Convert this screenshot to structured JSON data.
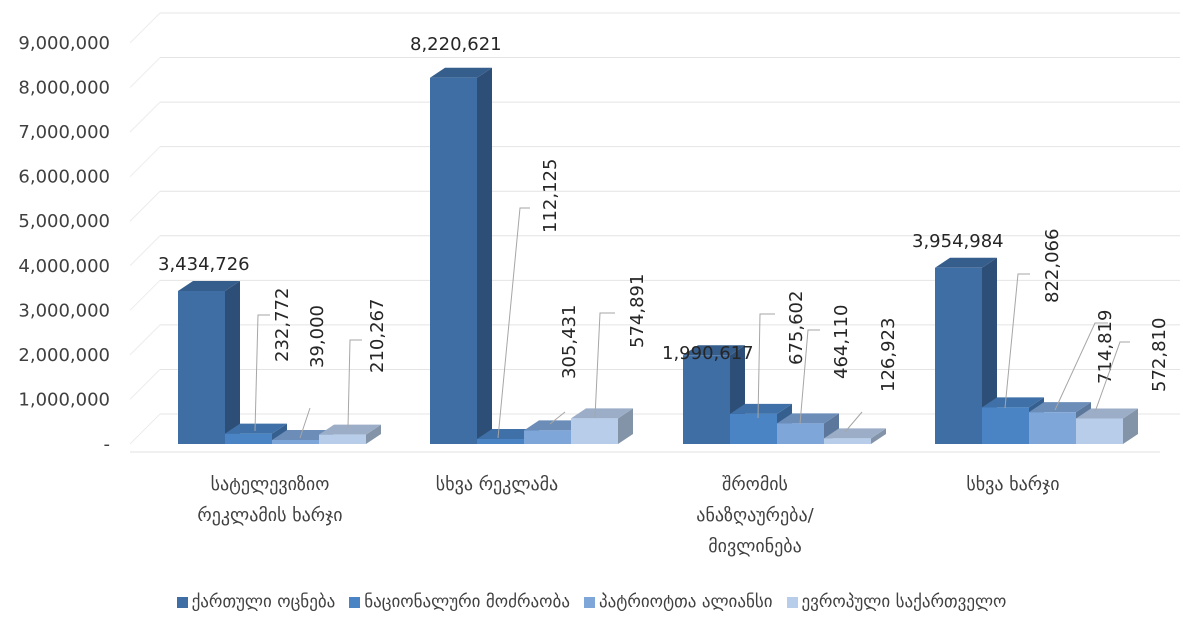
{
  "chart_data": {
    "type": "bar",
    "categories": [
      [
        "სატელევიზიო",
        "რეკლამის ხარჯი"
      ],
      [
        "სხვა რეკლამა"
      ],
      [
        "შრომის",
        "ანაზღაურება/",
        "მივლინება"
      ],
      [
        "სხვა ხარჯი"
      ]
    ],
    "series": [
      {
        "name": "ქართული ოცნება",
        "values": [
          3434726,
          8220621,
          1990617,
          3954984
        ],
        "labels": [
          "3,434,726",
          "8,220,621",
          "1,990,617",
          "3,954,984"
        ]
      },
      {
        "name": "ნაციონალური მოძრაობა",
        "values": [
          232772,
          112125,
          675602,
          822066
        ],
        "labels": [
          "232,772",
          "112,125",
          "675,602",
          "822,066"
        ]
      },
      {
        "name": "პატრიოტთა ალიანსი",
        "values": [
          39000,
          305431,
          464110,
          714819
        ],
        "labels": [
          "39,000",
          "305,431",
          "464,110",
          "714,819"
        ]
      },
      {
        "name": "ევროპული საქართველო",
        "values": [
          210267,
          574891,
          126923,
          572810
        ],
        "labels": [
          "210,267",
          "574,891",
          "126,923",
          "572,810"
        ]
      }
    ],
    "y_ticks": [
      "-",
      "1,000,000",
      "2,000,000",
      "3,000,000",
      "4,000,000",
      "5,000,000",
      "6,000,000",
      "7,000,000",
      "8,000,000",
      "9,000,000"
    ],
    "ylim": [
      0,
      9000000
    ],
    "colors": [
      "#3F6EA5",
      "#4A84C5",
      "#7EA6D8",
      "#B7CDEA"
    ],
    "grid": true,
    "legend_position": "bottom",
    "style": "3d-clustered-column"
  }
}
